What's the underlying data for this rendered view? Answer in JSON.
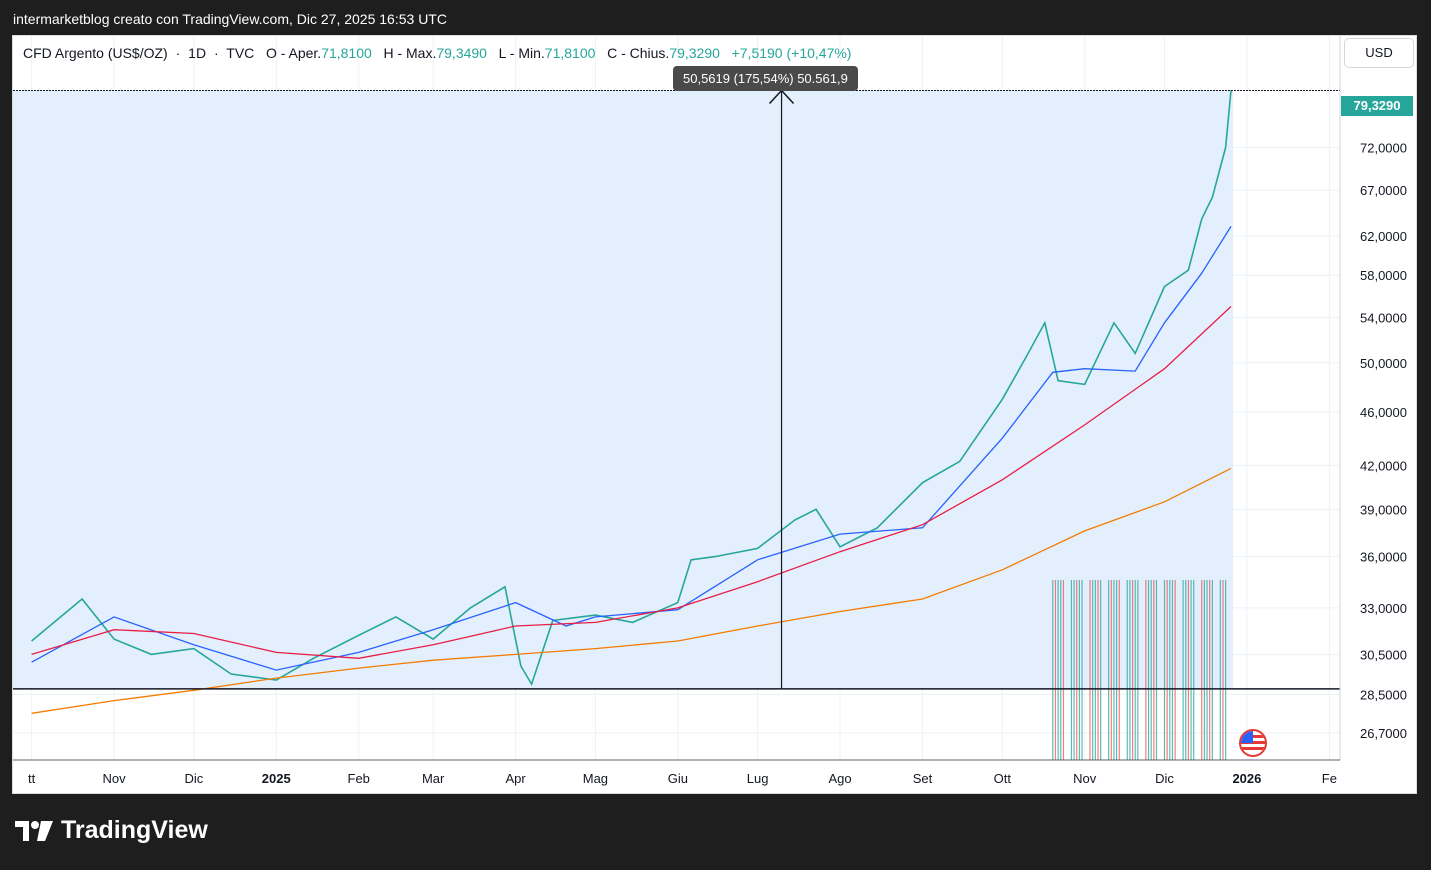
{
  "header": {
    "author_line": "intermarketblog creato con TradingView.com, Dic 27, 2025 16:53 UTC"
  },
  "legend": {
    "symbol": "CFD Argento (US$/OZ)",
    "dot1": "·",
    "interval": "1D",
    "dot2": "·",
    "source": "TVC",
    "open_label": "O - Aper.",
    "open_value": "71,8100",
    "high_label": "H - Max.",
    "high_value": "79,3490",
    "low_label": "L - Min.",
    "low_value": "71,8100",
    "close_label": "C - Chius.",
    "close_value": "79,3290",
    "change": "+7,5190 (+10,47%)"
  },
  "measure_tooltip": "50,5619 (175,54%) 50.561,9",
  "currency_button": "USD",
  "last_price_tag": "79,3290",
  "brand": {
    "name": "TradingView",
    "icon": "tradingview-logo-icon"
  },
  "event_icon": "us-flag-icon",
  "colors": {
    "up": "#26a69a",
    "down": "#ef5350",
    "ma_short": "#2962ff",
    "ma_mid": "#e91e45",
    "ma_long": "#f57c00",
    "measure_fill": "#e3effd",
    "tag": "#26a69a"
  },
  "chart_data": {
    "type": "line",
    "series": [
      {
        "name": "CFD Argento (US$/OZ)",
        "x": [
          "2024-10-01",
          "2024-10-20",
          "2024-11-01",
          "2024-11-15",
          "2024-12-01",
          "2024-12-15",
          "2025-01-01",
          "2025-01-15",
          "2025-02-01",
          "2025-02-15",
          "2025-03-01",
          "2025-03-15",
          "2025-03-28",
          "2025-04-03",
          "2025-04-07",
          "2025-04-15",
          "2025-05-01",
          "2025-05-15",
          "2025-06-01",
          "2025-06-06",
          "2025-06-15",
          "2025-07-01",
          "2025-07-15",
          "2025-07-23",
          "2025-08-01",
          "2025-08-15",
          "2025-09-01",
          "2025-09-15",
          "2025-10-01",
          "2025-10-10",
          "2025-10-17",
          "2025-10-22",
          "2025-11-01",
          "2025-11-12",
          "2025-11-20",
          "2025-12-01",
          "2025-12-10",
          "2025-12-15",
          "2025-12-19",
          "2025-12-24",
          "2025-12-26"
        ],
        "values": [
          31.2,
          33.5,
          31.3,
          30.5,
          30.8,
          29.5,
          29.2,
          30.3,
          31.5,
          32.5,
          31.3,
          33.0,
          34.2,
          29.9,
          29.0,
          32.3,
          32.6,
          32.2,
          33.3,
          35.8,
          36.0,
          36.5,
          38.3,
          39.0,
          36.6,
          37.8,
          40.8,
          42.3,
          47.0,
          50.5,
          53.5,
          48.5,
          48.2,
          53.5,
          50.8,
          56.9,
          58.5,
          63.8,
          66.2,
          72.0,
          79.33
        ]
      },
      {
        "name": "",
        "x": [
          "2024-10-01",
          "2024-11-01",
          "2024-12-01",
          "2025-01-01",
          "2025-02-01",
          "2025-03-01",
          "2025-04-01",
          "2025-04-20",
          "2025-05-01",
          "2025-06-01",
          "2025-07-01",
          "2025-08-01",
          "2025-09-01",
          "2025-10-01",
          "2025-10-20",
          "2025-11-01",
          "2025-11-20",
          "2025-12-01",
          "2025-12-15",
          "2025-12-26"
        ],
        "values": [
          30.1,
          32.5,
          31.0,
          29.7,
          30.6,
          31.8,
          33.3,
          32.0,
          32.5,
          32.9,
          35.8,
          37.4,
          37.8,
          44.0,
          49.2,
          49.5,
          49.3,
          53.5,
          58.2,
          63.0
        ]
      },
      {
        "name": "",
        "x": [
          "2024-10-01",
          "2024-11-01",
          "2024-12-01",
          "2025-01-01",
          "2025-02-01",
          "2025-03-01",
          "2025-04-01",
          "2025-05-01",
          "2025-06-01",
          "2025-07-01",
          "2025-08-01",
          "2025-09-01",
          "2025-10-01",
          "2025-11-01",
          "2025-12-01",
          "2025-12-26"
        ],
        "values": [
          30.5,
          31.8,
          31.6,
          30.6,
          30.3,
          31.0,
          32.0,
          32.2,
          33.0,
          34.5,
          36.3,
          38.0,
          41.0,
          45.0,
          49.5,
          55.0
        ]
      },
      {
        "name": "",
        "x": [
          "2024-10-01",
          "2024-11-01",
          "2024-12-01",
          "2025-01-01",
          "2025-02-01",
          "2025-03-01",
          "2025-04-01",
          "2025-05-01",
          "2025-06-01",
          "2025-07-01",
          "2025-08-01",
          "2025-09-01",
          "2025-10-01",
          "2025-11-01",
          "2025-12-01",
          "2025-12-26"
        ],
        "values": [
          27.6,
          28.2,
          28.7,
          29.3,
          29.8,
          30.2,
          30.5,
          30.8,
          31.2,
          32.0,
          32.8,
          33.5,
          35.2,
          37.6,
          39.5,
          41.8
        ]
      }
    ],
    "xlabel": "",
    "ylabel": "",
    "y_ticks": [
      "72,0000",
      "67,0000",
      "62,0000",
      "58,0000",
      "54,0000",
      "50,0000",
      "46,0000",
      "42,0000",
      "39,0000",
      "36,0000",
      "33,0000",
      "30,5000",
      "28,5000",
      "26,7000"
    ],
    "y_tick_values": [
      72,
      67,
      62,
      58,
      54,
      50,
      46,
      42,
      39,
      36,
      33,
      30.5,
      28.5,
      26.7
    ],
    "x_ticks": [
      "tt",
      "Nov",
      "Dic",
      "2025",
      "Feb",
      "Mar",
      "Apr",
      "Mag",
      "Giu",
      "Lug",
      "Ago",
      "Set",
      "Ott",
      "Nov",
      "Dic",
      "2026",
      "Fe"
    ],
    "x_tick_dates": [
      "2024-10-01",
      "2024-11-01",
      "2024-12-01",
      "2025-01-01",
      "2025-02-01",
      "2025-03-01",
      "2025-04-01",
      "2025-05-01",
      "2025-06-01",
      "2025-07-01",
      "2025-08-01",
      "2025-09-01",
      "2025-10-01",
      "2025-11-01",
      "2025-12-01",
      "2026-01-01",
      "2026-02-01"
    ],
    "x_range": [
      "2024-09-24",
      "2026-02-05"
    ],
    "y_range": [
      25.5,
      87
    ],
    "y_scale": "log",
    "measure": {
      "from_date": "2024-12-30",
      "to_date": "2025-12-26",
      "low": 28.767,
      "high": 79.329,
      "arrow_date": "2025-07-10"
    },
    "volume_range": [
      "2025-10-20",
      "2025-12-24"
    ],
    "grid": true
  }
}
